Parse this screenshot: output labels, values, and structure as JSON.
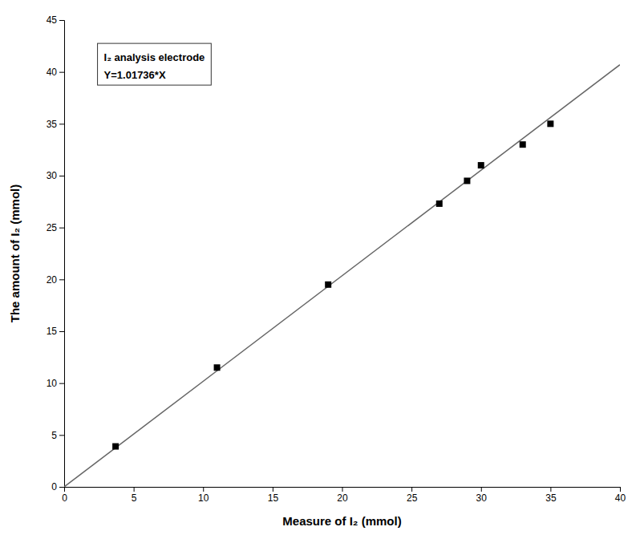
{
  "chart_data": {
    "type": "scatter",
    "xlabel": "Measure of I₂ (mmol)",
    "ylabel": "The amount of I₂ (mmol)",
    "annotations": [
      "I₂ analysis electrode",
      "Y=1.01736*X"
    ],
    "series": [
      {
        "type": "line",
        "color": "#666666",
        "line_style": "solid",
        "x": [
          0,
          40
        ],
        "values": [
          0,
          40.6944
        ]
      },
      {
        "type": "scatter",
        "marker": "square",
        "color": "#000000",
        "x": [
          3.7,
          11.0,
          19.0,
          27.0,
          29.0,
          30.0,
          33.0,
          35.0
        ],
        "values": [
          3.9,
          11.5,
          19.5,
          27.3,
          29.5,
          31.0,
          33.0,
          35.0
        ]
      }
    ],
    "xlim": [
      0,
      40
    ],
    "ylim": [
      0,
      45
    ],
    "xticks": [
      0,
      5,
      10,
      15,
      20,
      25,
      30,
      35,
      40
    ],
    "yticks": [
      0,
      5,
      10,
      15,
      20,
      25,
      30,
      35,
      40,
      45
    ],
    "grid": false
  }
}
